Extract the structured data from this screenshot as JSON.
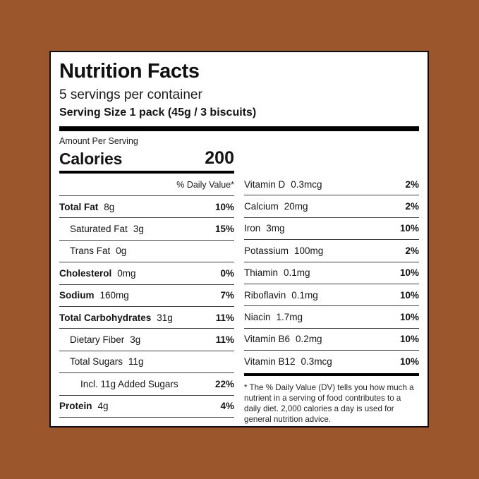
{
  "page": {
    "background_color": "#9C562B",
    "label_border_color": "#0d0d0d"
  },
  "label": {
    "title": "Nutrition Facts",
    "servings_per_container": "5 servings per container",
    "serving_size": "Serving Size 1 pack (45g / 3 biscuits)",
    "amount_per_serving": "Amount Per Serving",
    "calories_label": "Calories",
    "calories_value": "200",
    "daily_value_header": "% Daily Value*",
    "left_rows": [
      {
        "name": "Total Fat",
        "amount": "8g",
        "dv": "10%"
      },
      {
        "name": "Saturated Fat",
        "amount": "3g",
        "dv": "15%"
      },
      {
        "name": "Trans Fat",
        "amount": "0g",
        "dv": ""
      },
      {
        "name": "Cholesterol",
        "amount": "0mg",
        "dv": "0%"
      },
      {
        "name": "Sodium",
        "amount": "160mg",
        "dv": "7%"
      },
      {
        "name": "Total Carbohydrates",
        "amount": "31g",
        "dv": "11%"
      },
      {
        "name": "Dietary Fiber",
        "amount": "3g",
        "dv": "11%"
      },
      {
        "name": "Total Sugars",
        "amount": "11g",
        "dv": ""
      },
      {
        "name": "Incl. 11g Added Sugars",
        "amount": "",
        "dv": "22%"
      },
      {
        "name": "Protein",
        "amount": "4g",
        "dv": "4%"
      }
    ],
    "right_rows": [
      {
        "name": "Vitamin D",
        "amount": "0.3mcg",
        "dv": "2%"
      },
      {
        "name": "Calcium",
        "amount": "20mg",
        "dv": "2%"
      },
      {
        "name": "Iron",
        "amount": "3mg",
        "dv": "10%"
      },
      {
        "name": "Potassium",
        "amount": "100mg",
        "dv": "2%"
      },
      {
        "name": "Thiamin",
        "amount": "0.1mg",
        "dv": "10%"
      },
      {
        "name": "Riboflavin",
        "amount": "0.1mg",
        "dv": "10%"
      },
      {
        "name": "Niacin",
        "amount": "1.7mg",
        "dv": "10%"
      },
      {
        "name": "Vitamin B6",
        "amount": "0.2mg",
        "dv": "10%"
      },
      {
        "name": "Vitamin B12",
        "amount": "0.3mcg",
        "dv": "10%"
      }
    ],
    "footnote": "* The % Daily Value (DV) tells you how much a nutrient in a serving of food contributes to a daily diet. 2,000 calories a day is used for general nutrition advice."
  }
}
